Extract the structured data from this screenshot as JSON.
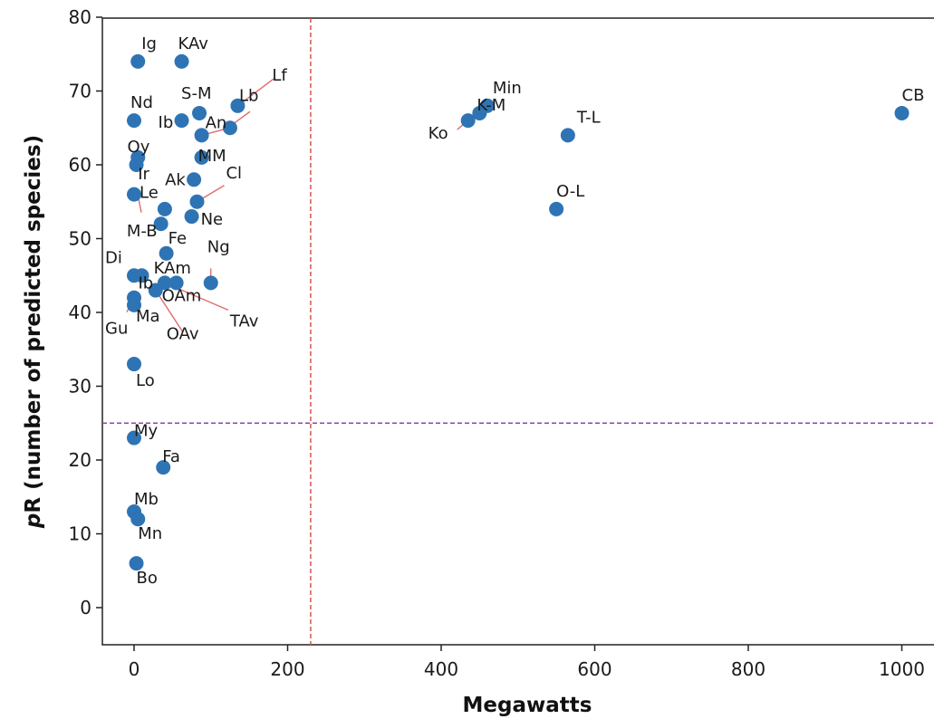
{
  "chart_data": {
    "type": "scatter",
    "title": "",
    "xlabel": "Megawatts",
    "ylabel": {
      "italic": "p",
      "rest": "R (number of predicted species)"
    },
    "xlim": [
      -45,
      1031
    ],
    "ylim": [
      -5,
      80
    ],
    "x_ticks": [
      0,
      200,
      400,
      600,
      800,
      1000
    ],
    "y_ticks": [
      0,
      10,
      20,
      30,
      40,
      50,
      60,
      70,
      80
    ],
    "grid": false,
    "marker_color": "#2e74b5",
    "reference_lines": [
      {
        "axis": "x",
        "value": 230,
        "color": "#d9534f",
        "style": "dashed"
      },
      {
        "axis": "y",
        "value": 25,
        "color": "#8e44ad",
        "style": "dashed"
      }
    ],
    "points": [
      {
        "label": "Ig",
        "x": 5,
        "y": 74
      },
      {
        "label": "KAv",
        "x": 62,
        "y": 74
      },
      {
        "label": "Lf",
        "x": 135,
        "y": 68
      },
      {
        "label": "Lb",
        "x": 125,
        "y": 65
      },
      {
        "label": "S-M",
        "x": 85,
        "y": 67
      },
      {
        "label": "Nd",
        "x": 0,
        "y": 66
      },
      {
        "label": "An",
        "x": 88,
        "y": 64
      },
      {
        "label": "Ib",
        "x": 62,
        "y": 66
      },
      {
        "label": "MM",
        "x": 88,
        "y": 61
      },
      {
        "label": "Oy",
        "x": 3,
        "y": 60
      },
      {
        "label": "Ir",
        "x": 5,
        "y": 61
      },
      {
        "label": "Cl",
        "x": 82,
        "y": 55
      },
      {
        "label": "Ak",
        "x": 78,
        "y": 58
      },
      {
        "label": "Le",
        "x": 0,
        "y": 56
      },
      {
        "label": "Ne",
        "x": 75,
        "y": 53
      },
      {
        "label": "M-B",
        "x": 40,
        "y": 54
      },
      {
        "label": "Fe",
        "x": 35,
        "y": 52
      },
      {
        "label": "Ng",
        "x": 100,
        "y": 44
      },
      {
        "label": "Di",
        "x": 0,
        "y": 45
      },
      {
        "label": "KAm",
        "x": 42,
        "y": 48
      },
      {
        "label": "Ib",
        "x": 10,
        "y": 45
      },
      {
        "label": "OAm",
        "x": 55,
        "y": 44
      },
      {
        "label": "TAv",
        "x": 40,
        "y": 44
      },
      {
        "label": "Ma",
        "x": 0,
        "y": 41
      },
      {
        "label": "OAv",
        "x": 28,
        "y": 43
      },
      {
        "label": "Gu",
        "x": 0,
        "y": 42
      },
      {
        "label": "Lo",
        "x": 0,
        "y": 33
      },
      {
        "label": "My",
        "x": 0,
        "y": 23
      },
      {
        "label": "Fa",
        "x": 38,
        "y": 19
      },
      {
        "label": "Mb",
        "x": 0,
        "y": 13
      },
      {
        "label": "Mn",
        "x": 5,
        "y": 12
      },
      {
        "label": "Bo",
        "x": 3,
        "y": 6
      },
      {
        "label": "Min",
        "x": 460,
        "y": 68
      },
      {
        "label": "K-M",
        "x": 450,
        "y": 67
      },
      {
        "label": "Ko",
        "x": 435,
        "y": 66
      },
      {
        "label": "T-L",
        "x": 565,
        "y": 64
      },
      {
        "label": "O-L",
        "x": 550,
        "y": 54
      },
      {
        "label": "CB",
        "x": 1000,
        "y": 67
      }
    ]
  }
}
